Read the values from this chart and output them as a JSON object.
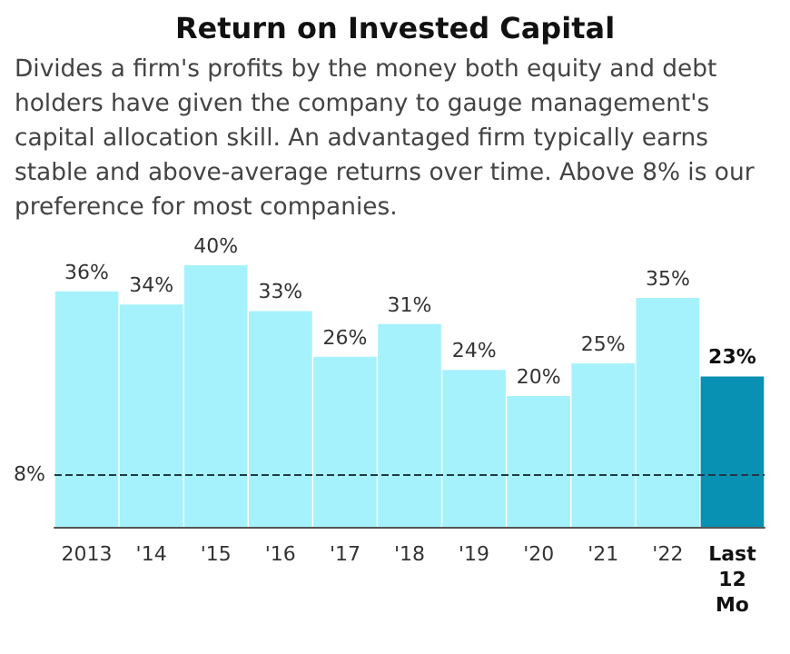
{
  "chart_data": {
    "type": "bar",
    "title": "Return on Invested Capital",
    "subtitle": "Divides a firm's profits by the money both equity and debt holders have given the company to gauge management's capital allocation skill. An advantaged firm typically earns stable and above-average returns over time. Above 8% is our preference for most companies.",
    "categories": [
      "2013",
      "'14",
      "'15",
      "'16",
      "'17",
      "'18",
      "'19",
      "'20",
      "'21",
      "'22",
      "Last 12 Mo"
    ],
    "values": [
      36,
      34,
      40,
      33,
      26,
      31,
      24,
      20,
      25,
      35,
      23
    ],
    "value_labels": [
      "36%",
      "34%",
      "40%",
      "33%",
      "26%",
      "31%",
      "24%",
      "20%",
      "25%",
      "35%",
      "23%"
    ],
    "colors": [
      "#a6f2fc",
      "#a6f2fc",
      "#a6f2fc",
      "#a6f2fc",
      "#a6f2fc",
      "#a6f2fc",
      "#a6f2fc",
      "#a6f2fc",
      "#a6f2fc",
      "#a6f2fc",
      "#0891b2"
    ],
    "ref_lines": [
      {
        "axis": "y",
        "value": 8,
        "label": "8%",
        "color": "#1f3a4a",
        "line_style": "dashed"
      }
    ],
    "tick_labels": "x"
  }
}
